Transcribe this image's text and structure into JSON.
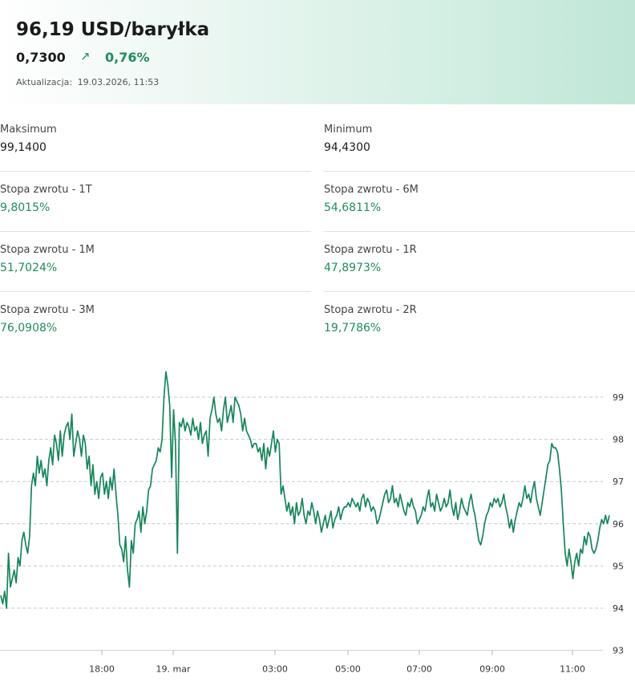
{
  "header": {
    "title": "96,19 USD/baryłka",
    "change_abs": "0,7300",
    "change_arrow": "↗",
    "change_pct": "0,76%",
    "updated_label": "Aktualizacja:",
    "updated_value": "19.03.2026, 11:53"
  },
  "stats": [
    {
      "label": "Maksimum",
      "value": "99,1400"
    },
    {
      "label": "Minimum",
      "value": "94,4300"
    },
    {
      "label": "Stopa zwrotu - 1T",
      "value": "9,8015%"
    },
    {
      "label": "Stopa zwrotu - 6M",
      "value": "54,6811%"
    },
    {
      "label": "Stopa zwrotu - 1M",
      "value": "51,7024%"
    },
    {
      "label": "Stopa zwrotu - 1R",
      "value": "47,8973%"
    },
    {
      "label": "Stopa zwrotu - 3M",
      "value": "76,0908%"
    },
    {
      "label": "Stopa zwrotu - 2R",
      "value": "19,7786%"
    }
  ],
  "colors": {
    "accent_green": "#1e8e5a",
    "line": "#16855a"
  },
  "chart_data": {
    "type": "line",
    "title": "",
    "xlabel": "",
    "ylabel": "",
    "ylim": [
      93,
      99.5
    ],
    "yticks": [
      93,
      94,
      95,
      96,
      97,
      98,
      99
    ],
    "ytick_labels": [
      "93",
      "94",
      "95",
      "96",
      "97",
      "98",
      "99"
    ],
    "xticks": [
      {
        "t": "18:00",
        "label": "18:00"
      },
      {
        "t": "19. mar",
        "label": "19. mar"
      },
      {
        "t": "03:00",
        "label": "03:00"
      },
      {
        "t": "05:00",
        "label": "05:00"
      },
      {
        "t": "07:00",
        "label": "07:00"
      },
      {
        "t": "09:00",
        "label": "09:00"
      },
      {
        "t": "11:00",
        "label": "11:00"
      }
    ],
    "grid": true,
    "series": [
      {
        "values": [
          94.3,
          94.1,
          94.4,
          94.0,
          95.3,
          94.5,
          94.7,
          94.9,
          94.6,
          95.2,
          95.0,
          95.6,
          95.8,
          95.5,
          95.3,
          95.7,
          96.9,
          97.2,
          96.9,
          97.6,
          97.2,
          97.5,
          97.1,
          97.3,
          96.9,
          97.5,
          97.8,
          97.4,
          98.1,
          97.9,
          97.5,
          98.2,
          97.6,
          98.1,
          98.3,
          98.4,
          98.0,
          98.6,
          97.6,
          97.9,
          98.2,
          98.0,
          97.6,
          98.1,
          97.9,
          97.3,
          97.6,
          96.9,
          97.4,
          96.7,
          97.0,
          96.6,
          97.1,
          97.2,
          96.7,
          97.0,
          96.6,
          97.1,
          96.8,
          97.3,
          96.7,
          96.2,
          95.5,
          95.4,
          95.1,
          95.7,
          94.9,
          94.5,
          95.6,
          95.3,
          96.0,
          96.1,
          96.3,
          95.8,
          96.4,
          96.0,
          96.3,
          96.8,
          96.9,
          97.3,
          97.4,
          97.5,
          97.8,
          97.7,
          98.0,
          99.0,
          99.6,
          99.3,
          98.8,
          97.1,
          98.7,
          97.9,
          95.3,
          98.4,
          98.3,
          98.5,
          98.2,
          98.4,
          98.3,
          98.1,
          98.5,
          98.2,
          98.3,
          98.0,
          98.4,
          97.9,
          98.1,
          98.2,
          97.6,
          98.5,
          98.7,
          99.0,
          98.6,
          98.4,
          98.5,
          98.2,
          98.7,
          99.0,
          98.4,
          98.6,
          98.8,
          98.4,
          99.0,
          98.9,
          98.8,
          98.6,
          98.2,
          98.5,
          98.2,
          98.1,
          98.0,
          97.8,
          97.9,
          97.9,
          97.7,
          97.8,
          97.5,
          97.9,
          97.3,
          97.8,
          97.6,
          97.9,
          98.2,
          97.7,
          98.0,
          97.9,
          96.7,
          96.9,
          96.6,
          96.3,
          96.5,
          96.2,
          96.4,
          96.0,
          96.5,
          96.2,
          96.3,
          96.6,
          96.2,
          96.0,
          96.3,
          96.2,
          96.5,
          96.3,
          96.0,
          96.3,
          96.1,
          95.8,
          96.0,
          96.2,
          95.9,
          96.1,
          96.3,
          95.9,
          96.1,
          96.2,
          96.4,
          96.1,
          96.3,
          96.4,
          96.4,
          96.5,
          96.4,
          96.6,
          96.5,
          96.4,
          96.5,
          96.3,
          96.6,
          96.7,
          96.4,
          96.6,
          96.5,
          96.3,
          96.4,
          96.3,
          96.0,
          96.1,
          96.3,
          96.5,
          96.7,
          96.8,
          96.5,
          96.6,
          96.9,
          96.5,
          96.6,
          96.4,
          96.7,
          96.5,
          96.3,
          96.2,
          96.5,
          96.4,
          96.6,
          96.4,
          96.3,
          96.0,
          96.1,
          96.2,
          96.4,
          96.3,
          96.6,
          96.8,
          96.4,
          96.5,
          96.3,
          96.7,
          96.5,
          96.3,
          96.4,
          96.6,
          96.4,
          96.5,
          96.8,
          96.4,
          96.2,
          96.5,
          96.1,
          96.3,
          96.6,
          96.4,
          96.3,
          96.2,
          96.5,
          96.7,
          96.4,
          96.2,
          95.9,
          95.6,
          95.5,
          95.7,
          96.0,
          96.2,
          96.3,
          96.5,
          96.4,
          96.6,
          96.5,
          96.6,
          96.4,
          96.5,
          96.7,
          96.4,
          96.2,
          95.9,
          96.1,
          95.8,
          96.1,
          96.3,
          96.5,
          96.4,
          96.6,
          96.9,
          96.6,
          96.7,
          96.5,
          96.8,
          97.0,
          96.6,
          96.4,
          96.2,
          96.5,
          96.8,
          97.1,
          97.4,
          97.5,
          97.9,
          97.8,
          97.8,
          97.7,
          97.3,
          96.8,
          96.0,
          95.3,
          95.0,
          95.4,
          95.1,
          94.7,
          95.1,
          95.3,
          95.0,
          95.4,
          95.3,
          95.7,
          95.5,
          95.8,
          95.7,
          95.4,
          95.3,
          95.4,
          95.6,
          95.9,
          96.1,
          96.0,
          96.2,
          96.0,
          96.2
        ]
      }
    ]
  }
}
